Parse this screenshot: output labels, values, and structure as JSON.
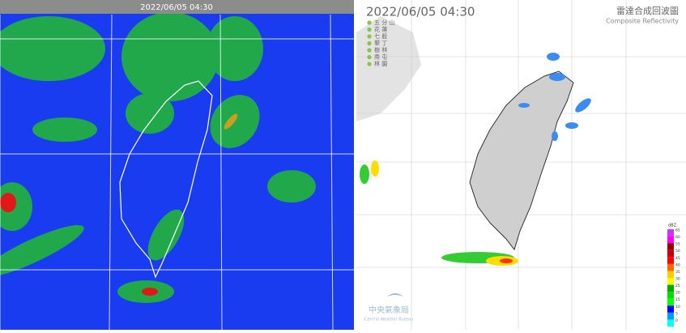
{
  "left_panel": {
    "timestamp": "2022/06/05 04:30"
  },
  "right_panel": {
    "timestamp": "2022/06/05  04:30",
    "title": "雷達合成回波圖",
    "subtitle": "Composite Reflectivity",
    "stations": [
      "五 分 山",
      "花 蓮",
      "七 股",
      "墾 丁",
      "樹 林",
      "南 屯",
      "林 園"
    ],
    "legend": {
      "unit": "dBZ",
      "levels": [
        {
          "value": 65,
          "color": "#cc33ff"
        },
        {
          "value": 60,
          "color": "#ff00ff"
        },
        {
          "value": 55,
          "color": "#990000"
        },
        {
          "value": 50,
          "color": "#cc0000"
        },
        {
          "value": 45,
          "color": "#ff0000"
        },
        {
          "value": 40,
          "color": "#ff6600"
        },
        {
          "value": 35,
          "color": "#ffcc00"
        },
        {
          "value": 30,
          "color": "#ffff00"
        },
        {
          "value": 25,
          "color": "#00aa00"
        },
        {
          "value": 20,
          "color": "#00dd00"
        },
        {
          "value": 15,
          "color": "#00ff00"
        },
        {
          "value": 10,
          "color": "#0000ff"
        },
        {
          "value": 5,
          "color": "#0099ff"
        },
        {
          "value": 0,
          "color": "#00ffff"
        }
      ]
    },
    "logo": {
      "name": "中央氣象局",
      "english": "Central Weather Bureau"
    }
  }
}
